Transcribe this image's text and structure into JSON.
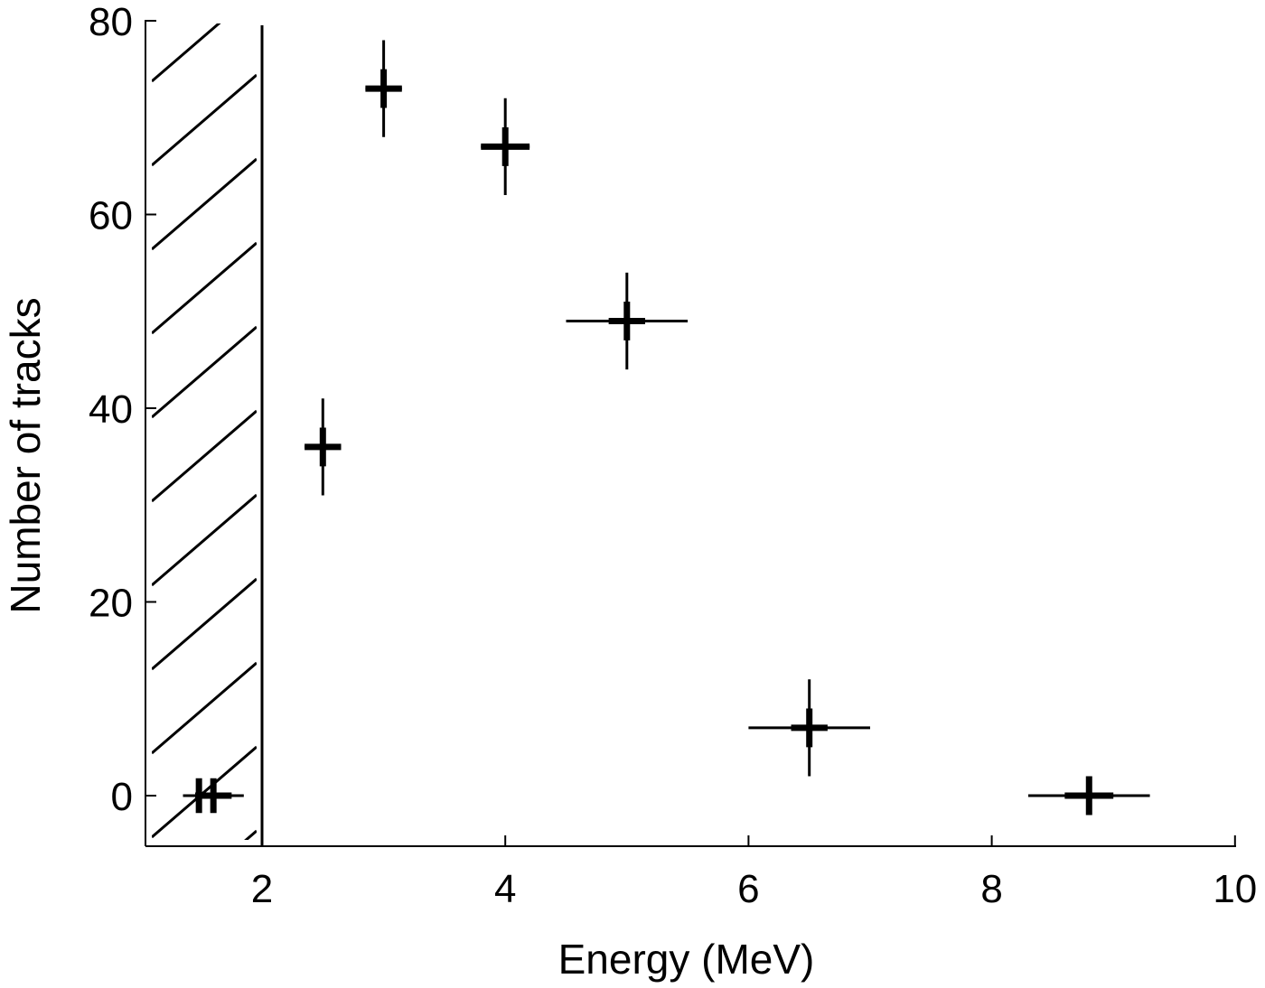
{
  "chart_data": {
    "type": "scatter",
    "title": "",
    "xlabel": "Energy (MeV)",
    "ylabel": "Number of tracks",
    "xlim": [
      1.0,
      10
    ],
    "ylim": [
      -5,
      80
    ],
    "xticks": [
      2,
      4,
      6,
      8,
      10
    ],
    "yticks": [
      0,
      20,
      40,
      60,
      80
    ],
    "xtick_labels": [
      "2",
      "4",
      "6",
      "8",
      "10"
    ],
    "ytick_labels": [
      "0",
      "20",
      "40",
      "60",
      "80"
    ],
    "threshold": {
      "x": 2.0,
      "region": [
        1.0,
        2.0
      ],
      "style": "hatched"
    },
    "grid": false,
    "legend": "none",
    "points": [
      {
        "x": 1.6,
        "y": 0,
        "xerr": 0.25,
        "yerr": 0,
        "xerr_thick": 0.15,
        "yerr_thick": 0
      },
      {
        "x": 2.5,
        "y": 36,
        "xerr": 0.15,
        "yerr": 5,
        "xerr_thick": 0.15,
        "yerr_thick": 2
      },
      {
        "x": 3.0,
        "y": 73,
        "xerr": 0.15,
        "yerr": 5,
        "xerr_thick": 0.15,
        "yerr_thick": 2
      },
      {
        "x": 4.0,
        "y": 67,
        "xerr": 0.2,
        "yerr": 5,
        "xerr_thick": 0.2,
        "yerr_thick": 2
      },
      {
        "x": 5.0,
        "y": 49,
        "xerr": 0.5,
        "yerr": 5,
        "xerr_thick": 0.15,
        "yerr_thick": 2
      },
      {
        "x": 6.5,
        "y": 7,
        "xerr": 0.5,
        "yerr": 5,
        "xerr_thick": 0.15,
        "yerr_thick": 2
      },
      {
        "x": 8.8,
        "y": 0,
        "xerr": 0.5,
        "yerr": 2,
        "xerr_thick": 0.2,
        "yerr_thick": 2
      }
    ]
  }
}
